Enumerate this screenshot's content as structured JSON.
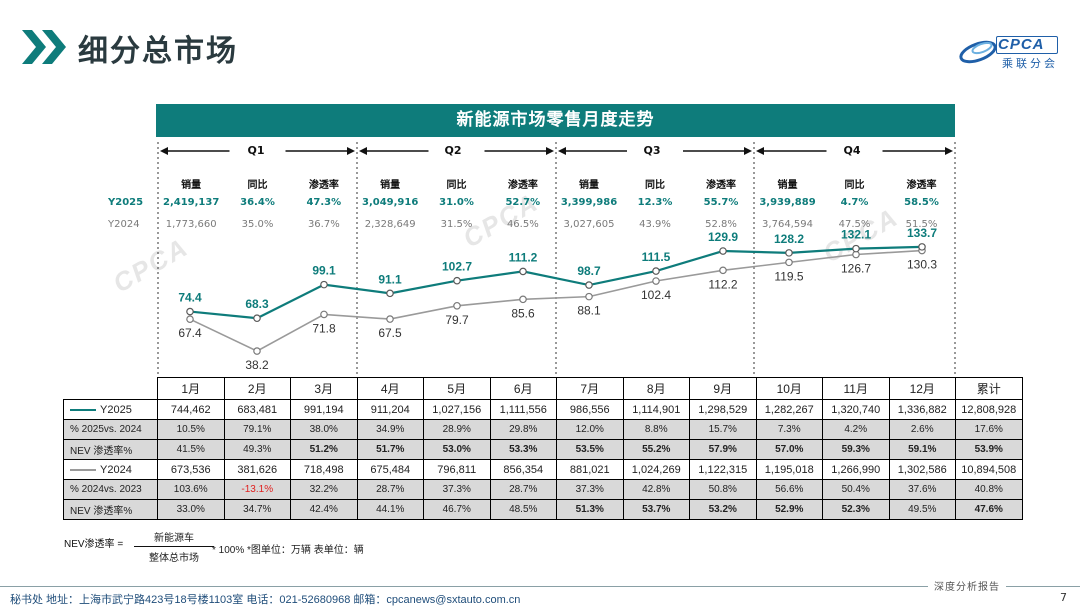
{
  "page": {
    "title": "细分总市场",
    "banner": "新能源市场零售月度走势",
    "logo_text": "CPCA",
    "logo_sub": "乘联分会",
    "watermark": "CPCA"
  },
  "colors": {
    "accent": "#0e7c7b",
    "y2024": "#9a9a9a",
    "negative": "#e0201f",
    "footer": "#1f4d7a"
  },
  "quarters": [
    {
      "label": "Q1",
      "y2025": {
        "sales": "2,419,137",
        "yoy": "36.4%",
        "pen": "47.3%"
      },
      "y2024": {
        "sales": "1,773,660",
        "yoy": "35.0%",
        "pen": "36.7%"
      }
    },
    {
      "label": "Q2",
      "y2025": {
        "sales": "3,049,916",
        "yoy": "31.0%",
        "pen": "52.7%"
      },
      "y2024": {
        "sales": "2,328,649",
        "yoy": "31.5%",
        "pen": "46.5%"
      }
    },
    {
      "label": "Q3",
      "y2025": {
        "sales": "3,399,986",
        "yoy": "12.3%",
        "pen": "55.7%"
      },
      "y2024": {
        "sales": "3,027,605",
        "yoy": "43.9%",
        "pen": "52.8%"
      }
    },
    {
      "label": "Q4",
      "y2025": {
        "sales": "3,939,889",
        "yoy": "4.7%",
        "pen": "58.5%"
      },
      "y2024": {
        "sales": "3,764,594",
        "yoy": "47.5%",
        "pen": "51.5%"
      }
    }
  ],
  "quarter_headers": {
    "sales": "销量",
    "yoy": "同比",
    "pen": "渗透率"
  },
  "row_labels": {
    "y2025": "Y2025",
    "y2024": "Y2024"
  },
  "chart_data": {
    "type": "line",
    "categories": [
      "1月",
      "2月",
      "3月",
      "4月",
      "5月",
      "6月",
      "7月",
      "8月",
      "9月",
      "10月",
      "11月",
      "12月"
    ],
    "series": [
      {
        "name": "Y2025",
        "values": [
          74.4,
          68.3,
          99.1,
          91.1,
          102.7,
          111.2,
          98.7,
          111.5,
          129.9,
          128.2,
          132.1,
          133.7
        ]
      },
      {
        "name": "Y2024",
        "values": [
          67.4,
          38.2,
          71.8,
          67.5,
          79.7,
          85.6,
          88.1,
          102.4,
          112.2,
          119.5,
          126.7,
          130.3
        ]
      }
    ],
    "title": "新能源市场零售月度走势",
    "ylim": [
      30,
      140
    ]
  },
  "table": {
    "months": [
      "1月",
      "2月",
      "3月",
      "4月",
      "5月",
      "6月",
      "7月",
      "8月",
      "9月",
      "10月",
      "11月",
      "12月"
    ],
    "total_label": "累计",
    "rows": [
      {
        "label": "Y2025",
        "legend": true,
        "color": "#0e7c7b",
        "shaded": false,
        "values": [
          "744,462",
          "683,481",
          "991,194",
          "911,204",
          "1,027,156",
          "1,111,556",
          "986,556",
          "1,114,901",
          "1,298,529",
          "1,282,267",
          "1,320,740",
          "1,336,882"
        ],
        "total": "12,808,928"
      },
      {
        "label": "% 2025vs. 2024",
        "legend": false,
        "shaded": true,
        "values": [
          "10.5%",
          "79.1%",
          "38.0%",
          "34.9%",
          "28.9%",
          "29.8%",
          "12.0%",
          "8.8%",
          "15.7%",
          "7.3%",
          "4.2%",
          "2.6%"
        ],
        "total": "17.6%"
      },
      {
        "label": "NEV 渗透率%",
        "legend": false,
        "shaded": true,
        "values": [
          "41.5%",
          "49.3%",
          "51.2%",
          "51.7%",
          "53.0%",
          "53.3%",
          "53.5%",
          "55.2%",
          "57.9%",
          "57.0%",
          "59.3%",
          "59.1%"
        ],
        "total": "53.9%",
        "bold": [
          2,
          3,
          4,
          5,
          6,
          7,
          8,
          9,
          10,
          11,
          12
        ]
      },
      {
        "label": "Y2024",
        "legend": true,
        "color": "#9a9a9a",
        "shaded": false,
        "values": [
          "673,536",
          "381,626",
          "718,498",
          "675,484",
          "796,811",
          "856,354",
          "881,021",
          "1,024,269",
          "1,122,315",
          "1,195,018",
          "1,266,990",
          "1,302,586"
        ],
        "total": "10,894,508"
      },
      {
        "label": "% 2024vs. 2023",
        "legend": false,
        "shaded": true,
        "values": [
          "103.6%",
          "-13.1%",
          "32.2%",
          "28.7%",
          "37.3%",
          "28.7%",
          "37.3%",
          "42.8%",
          "50.8%",
          "56.6%",
          "50.4%",
          "37.6%"
        ],
        "total": "40.8%",
        "red": [
          1
        ]
      },
      {
        "label": "NEV 渗透率%",
        "legend": false,
        "shaded": true,
        "values": [
          "33.0%",
          "34.7%",
          "42.4%",
          "44.1%",
          "46.7%",
          "48.5%",
          "51.3%",
          "53.7%",
          "53.2%",
          "52.9%",
          "52.3%",
          "49.5%"
        ],
        "total": "47.6%",
        "bold": [
          6,
          7,
          8,
          9,
          10
        ]
      }
    ]
  },
  "formula": {
    "lhs": "NEV渗透率 =",
    "numerator": "新能源车",
    "denominator": "整体总市场",
    "rest": "* 100%   *图单位：万辆   表单位：辆"
  },
  "footer": {
    "text": "秘书处   地址：上海市武宁路423号18号楼1103室   电话：021-52680968   邮箱：cpcanews@sxtauto.com.cn",
    "tag": "深度分析报告",
    "page_number": "7"
  }
}
